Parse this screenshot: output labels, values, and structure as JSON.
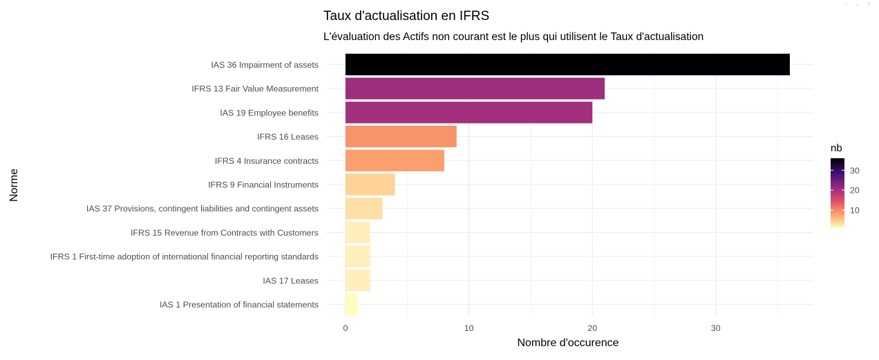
{
  "chart_data": {
    "type": "bar",
    "orientation": "horizontal",
    "title": "Taux d'actualisation en IFRS",
    "subtitle": "L'évaluation des Actifs non courant est le plus qui utilisent le Taux d'actualisation",
    "xlabel": "Nombre d'occurence",
    "ylabel": "Norme",
    "xlim": [
      0,
      37
    ],
    "x_ticks": [
      0,
      10,
      20,
      30
    ],
    "grid": true,
    "categories": [
      "IAS 36 Impairment of assets",
      "IFRS 13 Fair Value Measurement",
      "IAS 19 Employee benefits",
      "IFRS 16 Leases",
      "IFRS 4 Insurance contracts",
      "IFRS 9 Financial Instruments",
      "IAS 37 Provisions, contingent liabilities and contingent assets",
      "IFRS 15 Revenue from Contracts with Customers",
      "IFRS 1 First-time adoption of international financial reporting standards",
      "IAS 17 Leases",
      "IAS 1 Presentation of financial statements"
    ],
    "values": [
      36,
      21,
      20,
      9,
      8,
      4,
      3,
      2,
      2,
      2,
      1
    ],
    "colors": [
      "#000004",
      "#9c2e7f",
      "#a3307e",
      "#f8936a",
      "#fb9f6f",
      "#fed395",
      "#fee0a6",
      "#feefbd",
      "#feefbd",
      "#feefbd",
      "#fcfdbf"
    ],
    "legend": {
      "title": "nb",
      "ticks": [
        10,
        20,
        30
      ],
      "range": [
        1,
        36
      ],
      "placement": "right",
      "gradient": [
        "#fcfdbf",
        "#fe9f6d",
        "#de4968",
        "#8c2981",
        "#3b0f70",
        "#000004"
      ]
    }
  },
  "window_icons": "▫ ⌄ ×"
}
